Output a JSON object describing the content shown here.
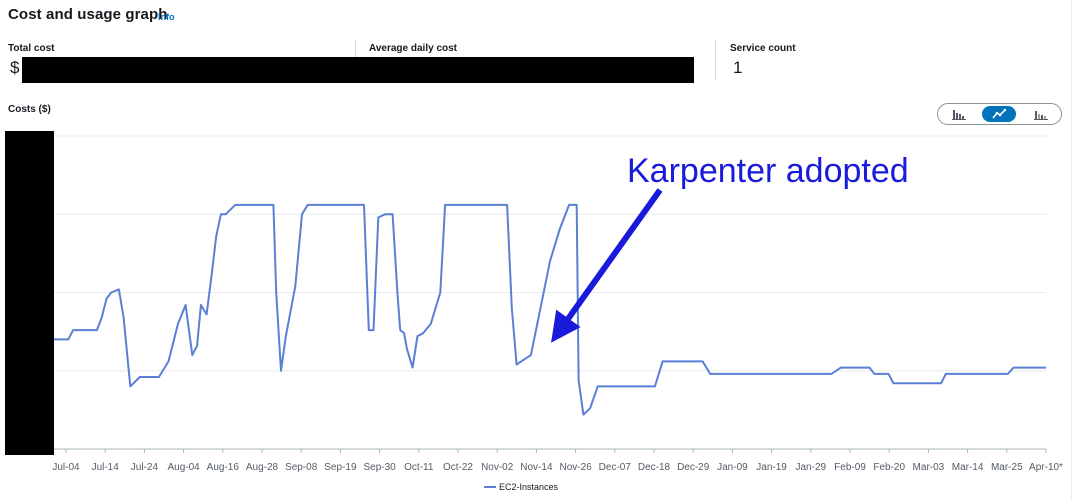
{
  "panel": {
    "title": "Cost and usage graph",
    "info_link": "Info"
  },
  "stats": {
    "total_cost_label": "Total cost",
    "total_cost_value": "$",
    "avg_daily_label": "Average daily cost",
    "service_count_label": "Service count",
    "service_count_value": "1"
  },
  "chart_type_toggle": {
    "options": [
      "bar-chart-icon",
      "line-chart-icon",
      "stacked-bar-icon"
    ],
    "selected": "line-chart-icon"
  },
  "chart_data": {
    "type": "line",
    "ylabel": "Costs ($)",
    "categories": [
      "Jul-04",
      "Jul-14",
      "Jul-24",
      "Aug-04",
      "Aug-16",
      "Aug-28",
      "Sep-08",
      "Sep-19",
      "Sep-30",
      "Oct-11",
      "Oct-22",
      "Nov-02",
      "Nov-14",
      "Nov-26",
      "Dec-07",
      "Dec-18",
      "Dec-29",
      "Jan-09",
      "Jan-19",
      "Jan-29",
      "Feb-09",
      "Feb-20",
      "Mar-03",
      "Mar-14",
      "Mar-25",
      "Apr-10*"
    ],
    "y_axis_note": "y-axis values redacted in original",
    "series": [
      {
        "name": "EC2-Instances",
        "color": "#5b7fd5",
        "points": [
          [
            0,
            0.35
          ],
          [
            1.5,
            0.35
          ],
          [
            2,
            0.38
          ],
          [
            4.5,
            0.38
          ],
          [
            5,
            0.42
          ],
          [
            5.5,
            0.48
          ],
          [
            6,
            0.5
          ],
          [
            6.8,
            0.51
          ],
          [
            7.3,
            0.42
          ],
          [
            8,
            0.2
          ],
          [
            9,
            0.23
          ],
          [
            11,
            0.23
          ],
          [
            12,
            0.28
          ],
          [
            13,
            0.4
          ],
          [
            13.8,
            0.46
          ],
          [
            14.5,
            0.3
          ],
          [
            15,
            0.33
          ],
          [
            15.4,
            0.46
          ],
          [
            16,
            0.43
          ],
          [
            16.5,
            0.55
          ],
          [
            17,
            0.68
          ],
          [
            17.5,
            0.75
          ],
          [
            18,
            0.75
          ],
          [
            19,
            0.78
          ],
          [
            23,
            0.78
          ],
          [
            23.3,
            0.5
          ],
          [
            23.8,
            0.25
          ],
          [
            24.3,
            0.36
          ],
          [
            25.3,
            0.52
          ],
          [
            26,
            0.75
          ],
          [
            26.6,
            0.78
          ],
          [
            32.5,
            0.78
          ],
          [
            33,
            0.38
          ],
          [
            33.5,
            0.38
          ],
          [
            34,
            0.74
          ],
          [
            34.7,
            0.75
          ],
          [
            35.5,
            0.75
          ],
          [
            36,
            0.5
          ],
          [
            36.3,
            0.38
          ],
          [
            36.7,
            0.37
          ],
          [
            37,
            0.32
          ],
          [
            37.6,
            0.26
          ],
          [
            38.1,
            0.36
          ],
          [
            38.7,
            0.37
          ],
          [
            39.5,
            0.4
          ],
          [
            40.5,
            0.5
          ],
          [
            41,
            0.78
          ],
          [
            47.5,
            0.78
          ],
          [
            48,
            0.45
          ],
          [
            48.5,
            0.27
          ],
          [
            50,
            0.3
          ],
          [
            51,
            0.45
          ],
          [
            52,
            0.6
          ],
          [
            53,
            0.7
          ],
          [
            54,
            0.78
          ],
          [
            54.8,
            0.78
          ],
          [
            55,
            0.22
          ],
          [
            55.5,
            0.11
          ],
          [
            56.2,
            0.13
          ],
          [
            57,
            0.2
          ],
          [
            63,
            0.2
          ],
          [
            63.8,
            0.28
          ],
          [
            66,
            0.28
          ],
          [
            68,
            0.28
          ],
          [
            68.8,
            0.24
          ],
          [
            74,
            0.24
          ],
          [
            80,
            0.24
          ],
          [
            81.5,
            0.24
          ],
          [
            82.5,
            0.26
          ],
          [
            85.5,
            0.26
          ],
          [
            86,
            0.24
          ],
          [
            87.5,
            0.24
          ],
          [
            88,
            0.21
          ],
          [
            92,
            0.21
          ],
          [
            93,
            0.21
          ],
          [
            93.5,
            0.24
          ],
          [
            100,
            0.24
          ],
          [
            100.6,
            0.26
          ],
          [
            104,
            0.26
          ]
        ]
      }
    ],
    "legend": {
      "position": "bottom-center",
      "entries": [
        "EC2-Instances"
      ]
    },
    "grid": true
  },
  "annotation": {
    "text": "Karpenter adopted",
    "color": "#1a1adb"
  }
}
